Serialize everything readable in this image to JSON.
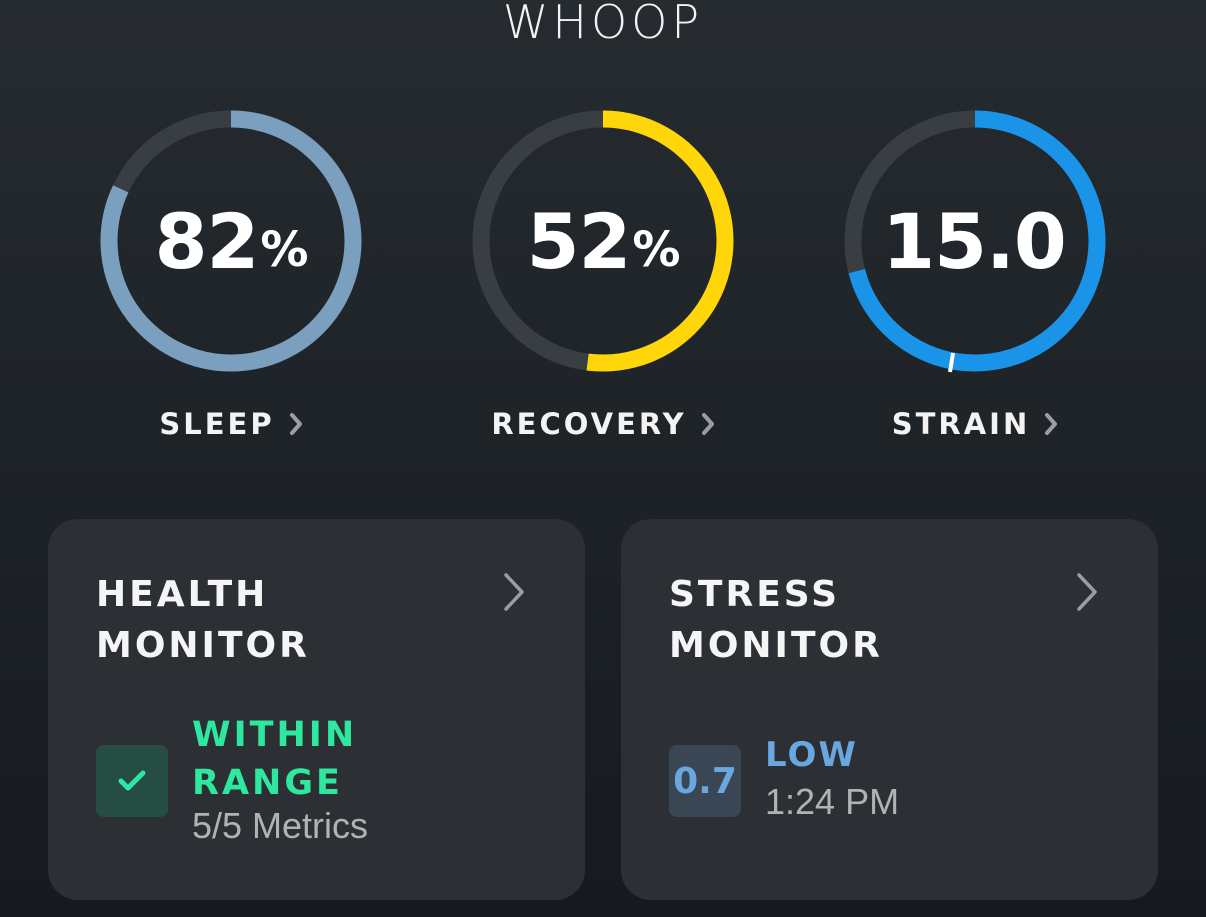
{
  "app": {
    "logo_text": "WHOOP"
  },
  "rings": [
    {
      "label": "SLEEP",
      "value": "82",
      "unit": "%",
      "progress": 0.82,
      "color": "#7a9fbf"
    },
    {
      "label": "RECOVERY",
      "value": "52",
      "unit": "%",
      "progress": 0.52,
      "color": "#ffd60a"
    },
    {
      "label": "STRAIN",
      "value": "15.0",
      "unit": "",
      "progress": 0.71,
      "color": "#1a94e8"
    }
  ],
  "health_monitor": {
    "title_line1": "HEALTH",
    "title_line2": "MONITOR",
    "status_line1": "WITHIN",
    "status_line2": "RANGE",
    "metrics": "5/5 Metrics",
    "status_color": "#2ee8a0",
    "icon": "check-icon"
  },
  "stress_monitor": {
    "title_line1": "STRESS",
    "title_line2": "MONITOR",
    "value": "0.7",
    "level": "LOW",
    "time": "1:24 PM",
    "level_color": "#6aa6e0"
  },
  "colors": {
    "track": "#393e43",
    "card_bg": "#2c3034",
    "background": "#1d2227"
  }
}
